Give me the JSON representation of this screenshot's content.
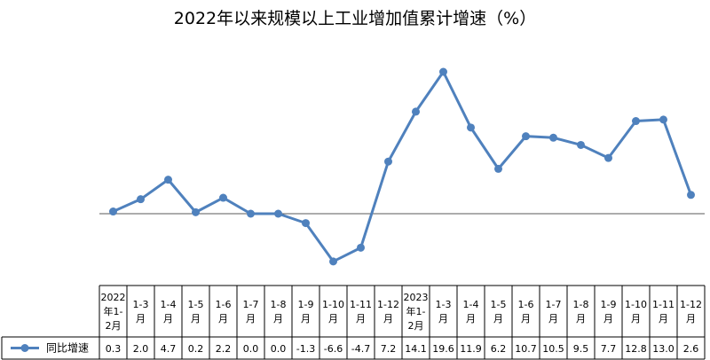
{
  "chart_data": {
    "type": "line",
    "title": "2022年以来规模以上工业增加值累计增速（%）",
    "legend_position": "bottom-left-table",
    "grid": false,
    "ylim": [
      -10,
      22
    ],
    "categories": [
      [
        "2022",
        "年1-",
        "2月"
      ],
      [
        "1-3",
        "月"
      ],
      [
        "1-4",
        "月"
      ],
      [
        "1-5",
        "月"
      ],
      [
        "1-6",
        "月"
      ],
      [
        "1-7",
        "月"
      ],
      [
        "1-8",
        "月"
      ],
      [
        "1-9",
        "月"
      ],
      [
        "1-10",
        "月"
      ],
      [
        "1-11",
        "月"
      ],
      [
        "1-12",
        "月"
      ],
      [
        "2023",
        "年1-",
        "2月"
      ],
      [
        "1-3",
        "月"
      ],
      [
        "1-4",
        "月"
      ],
      [
        "1-5",
        "月"
      ],
      [
        "1-6",
        "月"
      ],
      [
        "1-7",
        "月"
      ],
      [
        "1-8",
        "月"
      ],
      [
        "1-9",
        "月"
      ],
      [
        "1-10",
        "月"
      ],
      [
        "1-11",
        "月"
      ],
      [
        "1-12",
        "月"
      ]
    ],
    "value_labels": [
      "0.3",
      "2.0",
      "4.7",
      "0.2",
      "2.2",
      "0.0",
      "0.0",
      "-1.3",
      "-6.6",
      "-4.7",
      "7.2",
      "14.1",
      "19.6",
      "11.9",
      "6.2",
      "10.7",
      "10.5",
      "9.5",
      "7.7",
      "12.8",
      "13.0",
      "2.6"
    ],
    "series": [
      {
        "name": "同比增速",
        "color": "#4f81bd",
        "values": [
          0.3,
          2.0,
          4.7,
          0.2,
          2.2,
          0.0,
          0.0,
          -1.3,
          -6.6,
          -4.7,
          7.2,
          14.1,
          19.6,
          11.9,
          6.2,
          10.7,
          10.5,
          9.5,
          7.7,
          12.8,
          13.0,
          2.6
        ]
      }
    ]
  }
}
